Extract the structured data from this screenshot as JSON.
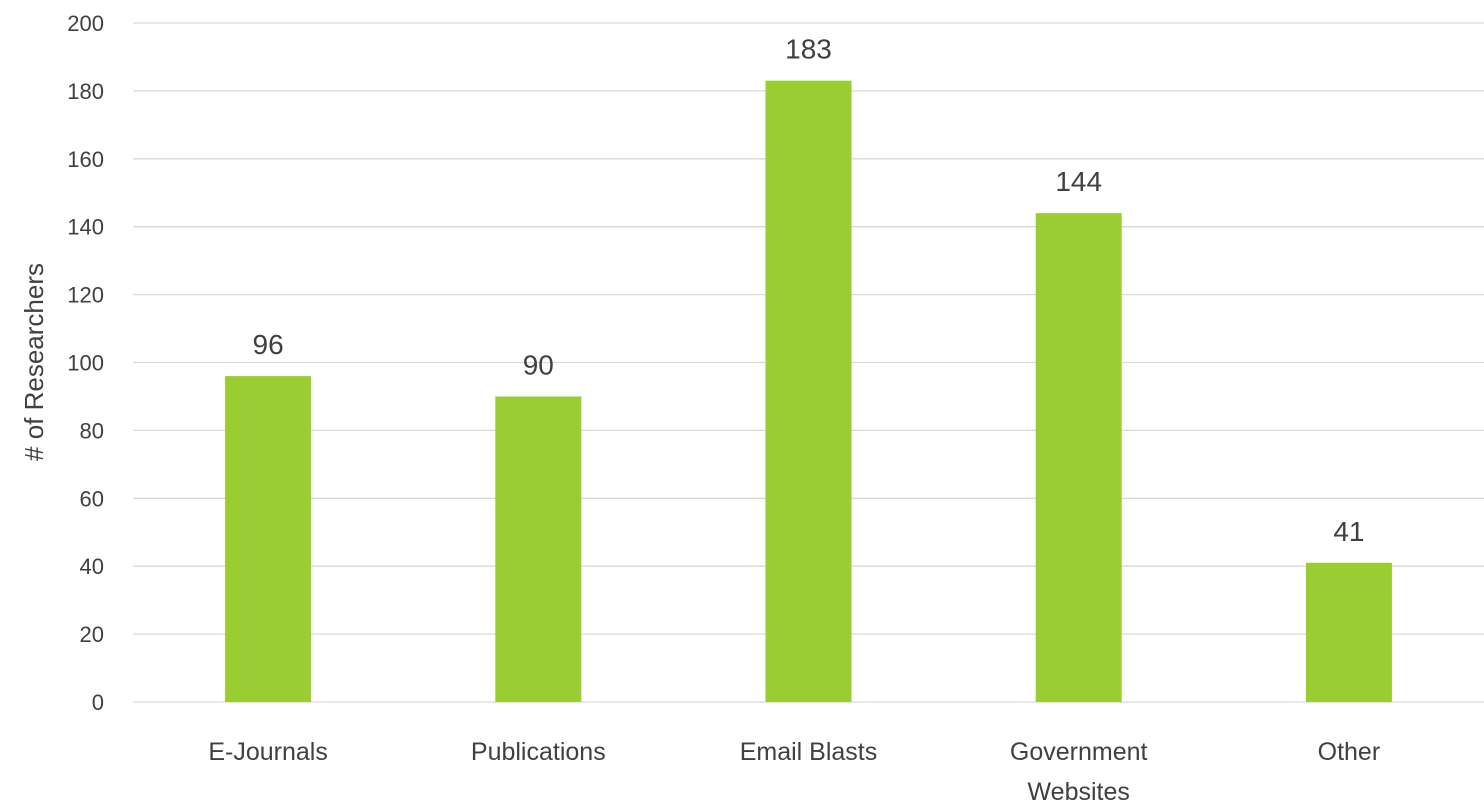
{
  "chart_data": {
    "type": "bar",
    "categories": [
      "E-Journals",
      "Publications",
      "Email Blasts",
      "Government Websites",
      "Other"
    ],
    "category_lines": [
      [
        "E-Journals"
      ],
      [
        "Publications"
      ],
      [
        "Email Blasts"
      ],
      [
        "Government",
        "Websites"
      ],
      [
        "Other"
      ]
    ],
    "values": [
      96,
      90,
      183,
      144,
      41
    ],
    "data_labels": [
      "96",
      "90",
      "183",
      "144",
      "41"
    ],
    "title": "",
    "xlabel": "",
    "ylabel": "# of Researchers",
    "ylim": [
      0,
      200
    ],
    "yticks": [
      0,
      20,
      40,
      60,
      80,
      100,
      120,
      140,
      160,
      180,
      200
    ],
    "grid": true,
    "legend": "none",
    "bar_color": "#9ACD32"
  }
}
